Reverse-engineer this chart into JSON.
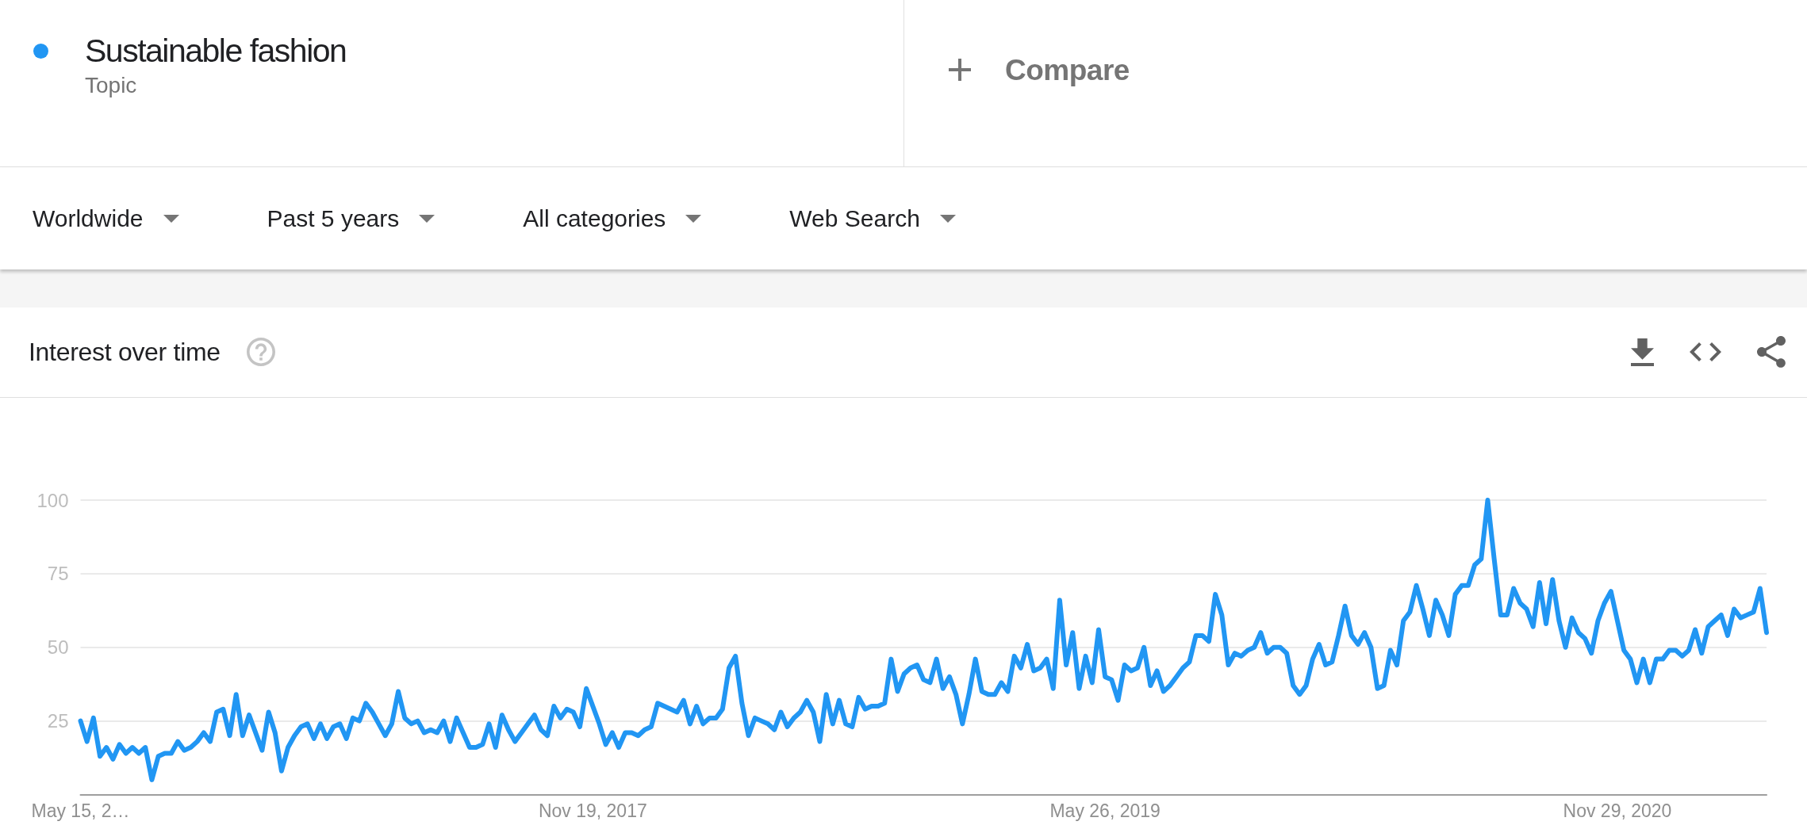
{
  "chart_data": {
    "type": "line",
    "title": "Interest over time",
    "annotations": [
      "Topic",
      "Compare",
      "Worldwide",
      "Past 5 years",
      "All categories",
      "Web Search"
    ],
    "categories": [
      "May 15, 2…",
      null,
      null,
      null,
      null,
      null,
      null,
      null,
      null,
      null,
      null,
      null,
      null,
      null,
      null,
      null,
      null,
      null,
      null,
      null,
      null,
      null,
      null,
      null,
      null,
      null,
      null,
      null,
      null,
      null,
      null,
      null,
      null,
      null,
      null,
      null,
      null,
      null,
      null,
      null,
      null,
      null,
      null,
      null,
      null,
      null,
      null,
      null,
      null,
      null,
      null,
      null,
      null,
      null,
      null,
      null,
      null,
      null,
      null,
      null,
      null,
      null,
      null,
      null,
      null,
      null,
      null,
      null,
      null,
      null,
      null,
      null,
      null,
      null,
      null,
      null,
      null,
      null,
      null,
      "Nov 19, 2017",
      null,
      null,
      null,
      null,
      null,
      null,
      null,
      null,
      null,
      null,
      null,
      null,
      null,
      null,
      null,
      null,
      null,
      null,
      null,
      null,
      null,
      null,
      null,
      null,
      null,
      null,
      null,
      null,
      null,
      null,
      null,
      null,
      null,
      null,
      null,
      null,
      null,
      null,
      null,
      null,
      null,
      null,
      null,
      null,
      null,
      null,
      null,
      null,
      null,
      null,
      null,
      null,
      null,
      null,
      null,
      null,
      null,
      null,
      null,
      null,
      null,
      null,
      null,
      null,
      null,
      null,
      null,
      null,
      null,
      null,
      null,
      null,
      null,
      null,
      null,
      null,
      null,
      null,
      "May 26, 2019",
      null,
      null,
      null,
      null,
      null,
      null,
      null,
      null,
      null,
      null,
      null,
      null,
      null,
      null,
      null,
      null,
      null,
      null,
      null,
      null,
      null,
      null,
      null,
      null,
      null,
      null,
      null,
      null,
      null,
      null,
      null,
      null,
      null,
      null,
      null,
      null,
      null,
      null,
      null,
      null,
      null,
      null,
      null,
      null,
      null,
      null,
      null,
      null,
      null,
      null,
      null,
      null,
      null,
      null,
      null,
      null,
      null,
      null,
      null,
      null,
      null,
      null,
      null,
      null,
      null,
      null,
      null,
      null,
      null,
      null,
      null,
      null,
      null,
      null,
      null,
      null,
      null,
      null,
      "Nov 29, 2020",
      null,
      null,
      null,
      null,
      null,
      null,
      null,
      null,
      null,
      null,
      null,
      null,
      null,
      null,
      null,
      null,
      null,
      null,
      null,
      null,
      null,
      null,
      null
    ],
    "series": [
      {
        "name": "Sustainable fashion",
        "color": "#2196f3",
        "values": [
          25,
          18,
          26,
          13,
          16,
          12,
          17,
          14,
          16,
          14,
          16,
          5,
          13,
          14,
          14,
          18,
          15,
          16,
          18,
          21,
          18,
          28,
          29,
          20,
          34,
          20,
          27,
          21,
          15,
          28,
          21,
          8,
          16,
          20,
          23,
          24,
          19,
          24,
          19,
          23,
          24,
          19,
          26,
          25,
          31,
          28,
          24,
          20,
          24,
          35,
          26,
          24,
          25,
          21,
          22,
          21,
          25,
          18,
          26,
          21,
          16,
          16,
          17,
          24,
          16,
          27,
          22,
          18,
          21,
          24,
          27,
          22,
          20,
          30,
          26,
          29,
          28,
          23,
          36,
          30,
          24,
          17,
          21,
          16,
          21,
          21,
          20,
          22,
          23,
          31,
          30,
          29,
          28,
          32,
          24,
          30,
          24,
          26,
          26,
          29,
          43,
          47,
          31,
          20,
          26,
          25,
          24,
          22,
          28,
          23,
          26,
          28,
          32,
          28,
          18,
          34,
          24,
          32,
          24,
          23,
          33,
          29,
          30,
          30,
          31,
          46,
          35,
          41,
          43,
          44,
          39,
          38,
          46,
          36,
          40,
          34,
          24,
          34,
          46,
          35,
          34,
          34,
          38,
          35,
          47,
          43,
          51,
          42,
          43,
          46,
          36,
          66,
          44,
          55,
          36,
          47,
          38,
          56,
          40,
          39,
          32,
          44,
          42,
          43,
          50,
          37,
          42,
          35,
          37,
          40,
          43,
          45,
          54,
          54,
          52,
          68,
          61,
          44,
          48,
          47,
          49,
          50,
          55,
          48,
          50,
          50,
          48,
          37,
          34,
          37,
          46,
          51,
          44,
          45,
          54,
          64,
          54,
          51,
          55,
          50,
          36,
          37,
          49,
          44,
          59,
          62,
          71,
          63,
          54,
          66,
          61,
          54,
          68,
          71,
          71,
          78,
          80,
          100,
          80,
          61,
          61,
          70,
          65,
          63,
          57,
          72,
          58,
          73,
          59,
          50,
          60,
          55,
          53,
          48,
          59,
          65,
          69,
          59,
          49,
          46,
          38,
          46,
          38,
          46,
          46,
          49,
          49,
          47,
          49,
          56,
          48,
          57,
          59,
          61,
          54,
          63,
          60,
          61,
          62,
          70,
          55
        ]
      }
    ],
    "ylim": [
      0,
      100
    ],
    "yticks": [
      25,
      50,
      75,
      100
    ],
    "grid": "y",
    "legend": "top left",
    "marker": "none",
    "line_style": "solid"
  }
}
